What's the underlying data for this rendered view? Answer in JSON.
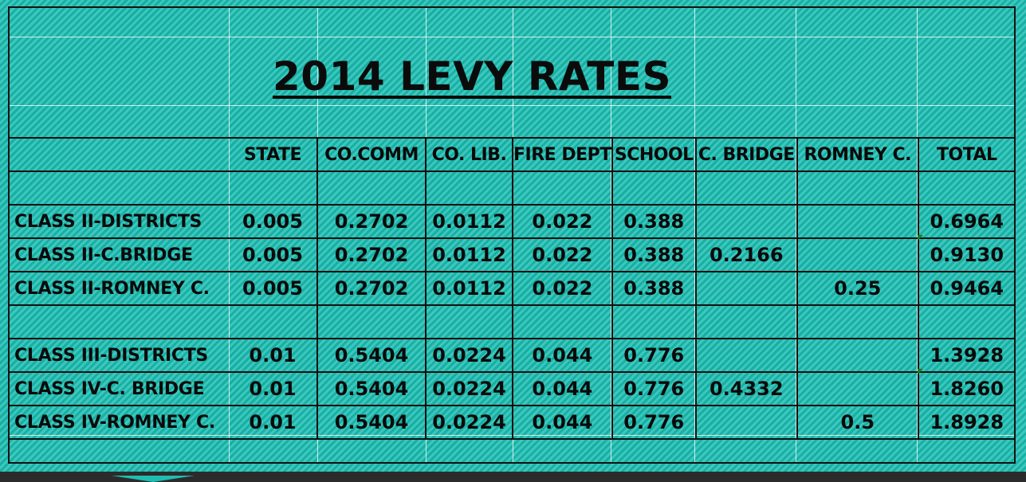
{
  "title": "2014 LEVY RATES",
  "columns": [
    "",
    "STATE",
    "CO.COMM",
    "CO. LIB.",
    "FIRE DEPT",
    "SCHOOL",
    "C. BRIDGE",
    "ROMNEY C.",
    "TOTAL"
  ],
  "groups": [
    {
      "rows": [
        {
          "label": "CLASS II-DISTRICTS",
          "state": "0.005",
          "co_comm": "0.2702",
          "co_lib": "0.0112",
          "fire_dept": "0.022",
          "school": "0.388",
          "c_bridge": "",
          "romney_c": "",
          "total": "0.6964"
        },
        {
          "label": "CLASS II-C.BRIDGE",
          "state": "0.005",
          "co_comm": "0.2702",
          "co_lib": "0.0112",
          "fire_dept": "0.022",
          "school": "0.388",
          "c_bridge": "0.2166",
          "romney_c": "",
          "total": "0.9130"
        },
        {
          "label": "CLASS II-ROMNEY C.",
          "state": "0.005",
          "co_comm": "0.2702",
          "co_lib": "0.0112",
          "fire_dept": "0.022",
          "school": "0.388",
          "c_bridge": "",
          "romney_c": "0.25",
          "total": "0.9464"
        }
      ]
    },
    {
      "rows": [
        {
          "label": "CLASS III-DISTRICTS",
          "state": "0.01",
          "co_comm": "0.5404",
          "co_lib": "0.0224",
          "fire_dept": "0.044",
          "school": "0.776",
          "c_bridge": "",
          "romney_c": "",
          "total": "1.3928"
        },
        {
          "label": "CLASS IV-C. BRIDGE",
          "state": "0.01",
          "co_comm": "0.5404",
          "co_lib": "0.0224",
          "fire_dept": "0.044",
          "school": "0.776",
          "c_bridge": "0.4332",
          "romney_c": "",
          "total": "1.8260"
        },
        {
          "label": "CLASS IV-ROMNEY C.",
          "state": "0.01",
          "co_comm": "0.5404",
          "co_lib": "0.0224",
          "fire_dept": "0.044",
          "school": "0.776",
          "c_bridge": "",
          "romney_c": "0.5",
          "total": "1.8928"
        }
      ]
    }
  ],
  "colors": {
    "background": "#19bcb0",
    "text": "#0a0a0a",
    "border": "#111111",
    "bottom_bar": "#2b2b2b",
    "comment_flag": "#1d7a1d"
  }
}
